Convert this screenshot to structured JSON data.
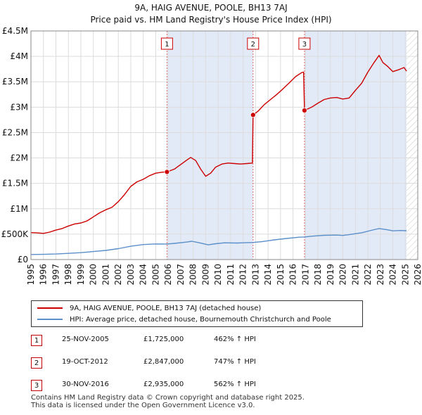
{
  "chart_data": {
    "type": "line",
    "title": "9A, HAIG AVENUE, POOLE, BH13 7AJ",
    "subtitle": "Price paid vs. HM Land Registry's House Price Index (HPI)",
    "xlim": [
      1995,
      2026
    ],
    "ylim": [
      0,
      4500000
    ],
    "x_ticks": [
      "1995",
      "1996",
      "1997",
      "1998",
      "1999",
      "2000",
      "2001",
      "2002",
      "2003",
      "2004",
      "2005",
      "2006",
      "2007",
      "2008",
      "2009",
      "2010",
      "2011",
      "2012",
      "2013",
      "2014",
      "2015",
      "2016",
      "2017",
      "2018",
      "2019",
      "2020",
      "2021",
      "2022",
      "2023",
      "2024",
      "2025",
      "2026"
    ],
    "y_ticks": [
      {
        "value": 0,
        "label": "£0"
      },
      {
        "value": 500000,
        "label": "£500K"
      },
      {
        "value": 1000000,
        "label": "£1M"
      },
      {
        "value": 1500000,
        "label": "£1.5M"
      },
      {
        "value": 2000000,
        "label": "£2M"
      },
      {
        "value": 2500000,
        "label": "£2.5M"
      },
      {
        "value": 3000000,
        "label": "£3M"
      },
      {
        "value": 3500000,
        "label": "£3.5M"
      },
      {
        "value": 4000000,
        "label": "£4M"
      },
      {
        "value": 4500000,
        "label": "£4.5M"
      }
    ],
    "shaded_ranges": [
      [
        2005.9,
        2012.8
      ],
      [
        2016.92,
        2025.1
      ]
    ],
    "future_hatch_start": 2025.1,
    "series": [
      {
        "name": "9A, HAIG AVENUE, POOLE, BH13 7AJ (detached house)",
        "color": "#cc0000",
        "points": [
          [
            1995.0,
            530000
          ],
          [
            1995.5,
            525000
          ],
          [
            1996.0,
            515000
          ],
          [
            1996.5,
            540000
          ],
          [
            1997.0,
            580000
          ],
          [
            1997.5,
            610000
          ],
          [
            1998.0,
            660000
          ],
          [
            1998.5,
            700000
          ],
          [
            1999.0,
            720000
          ],
          [
            1999.5,
            760000
          ],
          [
            2000.0,
            840000
          ],
          [
            2000.5,
            920000
          ],
          [
            2001.0,
            980000
          ],
          [
            2001.5,
            1030000
          ],
          [
            2002.0,
            1140000
          ],
          [
            2002.5,
            1280000
          ],
          [
            2003.0,
            1440000
          ],
          [
            2003.5,
            1530000
          ],
          [
            2004.0,
            1580000
          ],
          [
            2004.5,
            1650000
          ],
          [
            2005.0,
            1700000
          ],
          [
            2005.5,
            1720000
          ],
          [
            2005.9,
            1725000
          ],
          [
            2006.5,
            1780000
          ],
          [
            2007.0,
            1870000
          ],
          [
            2007.5,
            1960000
          ],
          [
            2007.8,
            2010000
          ],
          [
            2008.2,
            1950000
          ],
          [
            2008.6,
            1780000
          ],
          [
            2009.0,
            1640000
          ],
          [
            2009.4,
            1700000
          ],
          [
            2009.8,
            1820000
          ],
          [
            2010.3,
            1880000
          ],
          [
            2010.8,
            1900000
          ],
          [
            2011.3,
            1890000
          ],
          [
            2011.8,
            1880000
          ],
          [
            2012.3,
            1890000
          ],
          [
            2012.75,
            1900000
          ],
          [
            2012.8,
            2847000
          ],
          [
            2013.2,
            2920000
          ],
          [
            2013.7,
            3050000
          ],
          [
            2014.2,
            3150000
          ],
          [
            2014.7,
            3250000
          ],
          [
            2015.2,
            3360000
          ],
          [
            2015.7,
            3480000
          ],
          [
            2016.2,
            3600000
          ],
          [
            2016.7,
            3680000
          ],
          [
            2016.85,
            3690000
          ],
          [
            2016.92,
            2935000
          ],
          [
            2017.5,
            3000000
          ],
          [
            2018.0,
            3080000
          ],
          [
            2018.5,
            3150000
          ],
          [
            2019.0,
            3180000
          ],
          [
            2019.5,
            3190000
          ],
          [
            2020.0,
            3160000
          ],
          [
            2020.5,
            3180000
          ],
          [
            2021.0,
            3330000
          ],
          [
            2021.5,
            3470000
          ],
          [
            2022.0,
            3690000
          ],
          [
            2022.5,
            3880000
          ],
          [
            2022.9,
            4020000
          ],
          [
            2023.2,
            3880000
          ],
          [
            2023.6,
            3800000
          ],
          [
            2024.0,
            3700000
          ],
          [
            2024.5,
            3740000
          ],
          [
            2024.9,
            3780000
          ],
          [
            2025.1,
            3710000
          ]
        ]
      },
      {
        "name": "HPI: Average price, detached house, Bournemouth Christchurch and Poole",
        "color": "#5b8fc9",
        "points": [
          [
            1995.0,
            100000
          ],
          [
            1996.0,
            102000
          ],
          [
            1997.0,
            110000
          ],
          [
            1998.0,
            122000
          ],
          [
            1999.0,
            136000
          ],
          [
            2000.0,
            158000
          ],
          [
            2001.0,
            180000
          ],
          [
            2002.0,
            215000
          ],
          [
            2003.0,
            262000
          ],
          [
            2004.0,
            295000
          ],
          [
            2005.0,
            308000
          ],
          [
            2005.9,
            306000
          ],
          [
            2006.5,
            318000
          ],
          [
            2007.5,
            345000
          ],
          [
            2007.9,
            360000
          ],
          [
            2008.5,
            330000
          ],
          [
            2009.2,
            290000
          ],
          [
            2009.8,
            312000
          ],
          [
            2010.5,
            330000
          ],
          [
            2011.5,
            325000
          ],
          [
            2012.0,
            330000
          ],
          [
            2012.8,
            336000
          ],
          [
            2013.5,
            352000
          ],
          [
            2014.5,
            388000
          ],
          [
            2015.5,
            415000
          ],
          [
            2016.5,
            440000
          ],
          [
            2016.92,
            444000
          ],
          [
            2017.5,
            460000
          ],
          [
            2018.5,
            478000
          ],
          [
            2019.5,
            482000
          ],
          [
            2020.0,
            475000
          ],
          [
            2020.5,
            490000
          ],
          [
            2021.5,
            528000
          ],
          [
            2022.5,
            588000
          ],
          [
            2022.9,
            610000
          ],
          [
            2023.5,
            590000
          ],
          [
            2024.0,
            565000
          ],
          [
            2024.6,
            572000
          ],
          [
            2025.1,
            568000
          ]
        ]
      }
    ],
    "sales": [
      {
        "id": "1",
        "x": 2005.9,
        "price": 1725000
      },
      {
        "id": "2",
        "x": 2012.8,
        "price": 2847000
      },
      {
        "id": "3",
        "x": 2016.92,
        "price": 2935000
      }
    ],
    "marker_label_price": 4250000
  },
  "header": {
    "title": "9A, HAIG AVENUE, POOLE, BH13 7AJ",
    "subtitle": "Price paid vs. HM Land Registry's House Price Index (HPI)"
  },
  "legend": {
    "items": [
      {
        "label": "9A, HAIG AVENUE, POOLE, BH13 7AJ (detached house)",
        "color": "#cc0000"
      },
      {
        "label": "HPI: Average price, detached house, Bournemouth Christchurch and Poole",
        "color": "#5b8fc9"
      }
    ]
  },
  "sales_table": [
    {
      "num": "1",
      "date": "25-NOV-2005",
      "price": "£1,725,000",
      "hpi": "462% ↑ HPI"
    },
    {
      "num": "2",
      "date": "19-OCT-2012",
      "price": "£2,847,000",
      "hpi": "747% ↑ HPI"
    },
    {
      "num": "3",
      "date": "30-NOV-2016",
      "price": "£2,935,000",
      "hpi": "562% ↑ HPI"
    }
  ],
  "footer": {
    "line1": "Contains HM Land Registry data © Crown copyright and database right 2025.",
    "line2": "This data is licensed under the Open Government Licence v3.0."
  }
}
